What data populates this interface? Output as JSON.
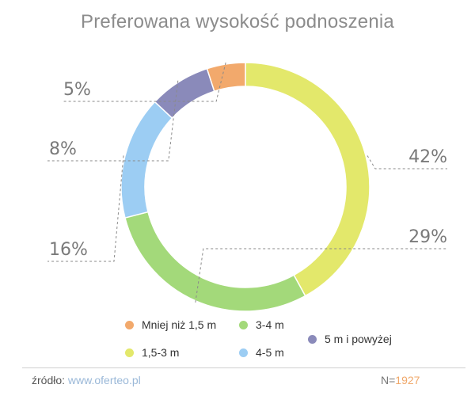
{
  "chart_data": {
    "type": "pie",
    "title": "Preferowana wysokość podnoszenia",
    "slices": [
      {
        "label": "1,5-3 m",
        "value": 42,
        "display": "42%",
        "color": "#e3e86b"
      },
      {
        "label": "3-4 m",
        "value": 29,
        "display": "29%",
        "color": "#a3d97a"
      },
      {
        "label": "4-5 m",
        "value": 16,
        "display": "16%",
        "color": "#9ccdf3"
      },
      {
        "label": "5 m i powyżej",
        "value": 8,
        "display": "8%",
        "color": "#8a8aba"
      },
      {
        "label": "Mniej niż 1,5 m",
        "value": 5,
        "display": "5%",
        "color": "#f2a96c"
      }
    ],
    "legend": [
      "Mniej niż 1,5 m",
      "3-4 m",
      "5 m i powyżej",
      "1,5-3 m",
      "4-5 m"
    ],
    "legend_position": "bottom"
  },
  "footer": {
    "source_label": "źródło:",
    "source_link": "www.oferteo.pl",
    "sample_label": "N=",
    "sample_value": "1927"
  }
}
